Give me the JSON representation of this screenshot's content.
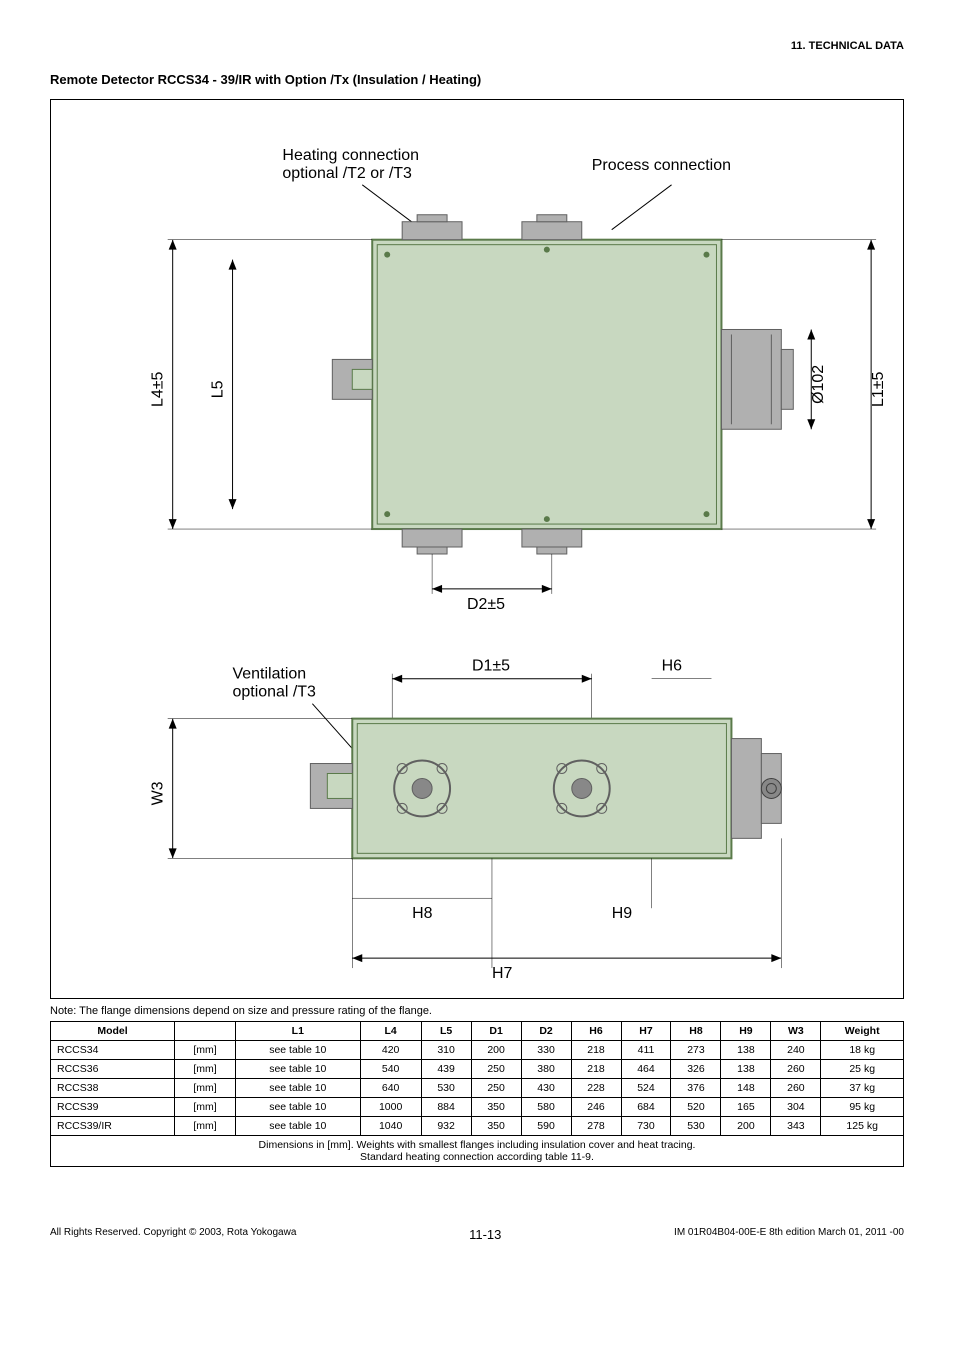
{
  "header": {
    "section": "11.  TECHNICAL DATA"
  },
  "title": "Remote Detector RCCS34 - 39/IR with Option /Tx (Insulation / Heating)",
  "diagram": {
    "labels": {
      "heating": "Heating connection\noptional /T2 or /T3",
      "process": "Process connection",
      "ventilation": "Ventilation\noptional /T3",
      "L4": "L4±5",
      "L5": "L5",
      "L1": "L1±5",
      "D2": "D2±5",
      "D1": "D1±5",
      "dia": "Ø102",
      "H6": "H6",
      "H7": "H7",
      "H8": "H8",
      "H9": "H9",
      "W3": "W3"
    },
    "colors": {
      "body_fill": "#c8d8c0",
      "body_stroke": "#5a7a4a",
      "flange_fill": "#b0b0b0",
      "flange_stroke": "#606060",
      "arrow": "#000000",
      "label_line": "#000000",
      "text": "#000000"
    }
  },
  "note": "Note: The flange dimensions depend on size and pressure rating of the flange.",
  "table": {
    "headers": [
      "Model",
      "",
      "L1",
      "L4",
      "L5",
      "D1",
      "D2",
      "H6",
      "H7",
      "H8",
      "H9",
      "W3",
      "Weight"
    ],
    "rows": [
      [
        "RCCS34",
        "[mm]",
        "see table 10",
        "420",
        "310",
        "200",
        "330",
        "218",
        "411",
        "273",
        "138",
        "240",
        "18 kg"
      ],
      [
        "RCCS36",
        "[mm]",
        "see table 10",
        "540",
        "439",
        "250",
        "380",
        "218",
        "464",
        "326",
        "138",
        "260",
        "25 kg"
      ],
      [
        "RCCS38",
        "[mm]",
        "see table 10",
        "640",
        "530",
        "250",
        "430",
        "228",
        "524",
        "376",
        "148",
        "260",
        "37 kg"
      ],
      [
        "RCCS39",
        "[mm]",
        "see table 10",
        "1000",
        "884",
        "350",
        "580",
        "246",
        "684",
        "520",
        "165",
        "304",
        "95 kg"
      ],
      [
        "RCCS39/IR",
        "[mm]",
        "see table 10",
        "1040",
        "932",
        "350",
        "590",
        "278",
        "730",
        "530",
        "200",
        "343",
        "125 kg"
      ]
    ],
    "footnote": "Dimensions in [mm].   Weights with smallest flanges including insulation cover and heat tracing.\nStandard heating connection according table 11-9."
  },
  "footer": {
    "left": "All Rights Reserved. Copyright © 2003, Rota Yokogawa",
    "center": "11-13",
    "right": "IM 01R04B04-00E-E     8th edition March 01, 2011 -00"
  }
}
